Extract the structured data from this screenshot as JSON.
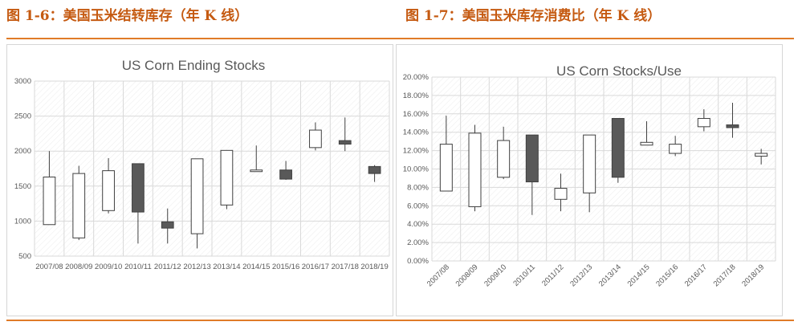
{
  "figures": {
    "left_caption": "图 1-6：美国玉米结转库存（年 K 线）",
    "right_caption": "图 1-7：美国玉米库存消费比（年 K 线）"
  },
  "colors": {
    "caption": "#c55a11",
    "rule": "#e07b28",
    "up_candle": "#ffffff",
    "down_candle": "#595959",
    "candle_outline": "#404040",
    "grid": "#d9d9d9"
  },
  "chart_data": [
    {
      "type": "candlestick",
      "title": "US Corn Ending Stocks",
      "xlabel": "",
      "ylabel": "",
      "ylim": [
        500,
        3000
      ],
      "yticks": [
        "500",
        "1000",
        "1500",
        "2000",
        "2500",
        "3000"
      ],
      "grid": true,
      "categories": [
        "2007/08",
        "2008/09",
        "2009/10",
        "2010/11",
        "2011/12",
        "2012/13",
        "2013/14",
        "2014/15",
        "2015/16",
        "2016/17",
        "2017/18",
        "2018/19"
      ],
      "series": [
        {
          "open": [
            950,
            760,
            1150,
            1820,
            990,
            820,
            1230,
            1730,
            1730,
            2050,
            2150,
            1780
          ],
          "high": [
            2000,
            1790,
            1900,
            1820,
            1180,
            1890,
            2010,
            2080,
            1860,
            2410,
            2480,
            1800
          ],
          "low": [
            950,
            730,
            1110,
            680,
            680,
            610,
            1170,
            1730,
            1590,
            2010,
            2000,
            1560
          ],
          "close": [
            1630,
            1680,
            1720,
            1130,
            900,
            1890,
            2010,
            1730,
            1600,
            2300,
            2100,
            1680
          ]
        }
      ]
    },
    {
      "type": "candlestick",
      "title": "US Corn  Stocks/Use",
      "xlabel": "",
      "ylabel": "",
      "ylim": [
        0,
        20
      ],
      "yticks": [
        "0.00%",
        "2.00%",
        "4.00%",
        "6.00%",
        "8.00%",
        "10.00%",
        "12.00%",
        "14.00%",
        "16.00%",
        "18.00%",
        "20.00%"
      ],
      "grid": true,
      "categories": [
        "2007/08",
        "2008/09",
        "2009/10",
        "2010/11",
        "2011/12",
        "2012/13",
        "2013/14",
        "2014/15",
        "2015/16",
        "2016/17",
        "2017/18",
        "2018/19"
      ],
      "series": [
        {
          "open": [
            7.6,
            5.9,
            9.1,
            13.7,
            6.7,
            7.4,
            15.5,
            12.6,
            11.7,
            14.6,
            14.8,
            11.4
          ],
          "high": [
            15.8,
            14.8,
            14.6,
            13.7,
            9.5,
            13.7,
            15.5,
            15.2,
            13.6,
            16.5,
            17.2,
            12.2
          ],
          "low": [
            7.6,
            5.4,
            8.9,
            5.0,
            5.4,
            5.3,
            8.5,
            12.6,
            11.4,
            14.1,
            13.4,
            10.5
          ],
          "close": [
            12.7,
            13.9,
            13.1,
            8.6,
            7.9,
            13.7,
            9.1,
            12.9,
            12.7,
            15.5,
            14.5,
            11.7
          ]
        }
      ]
    }
  ]
}
